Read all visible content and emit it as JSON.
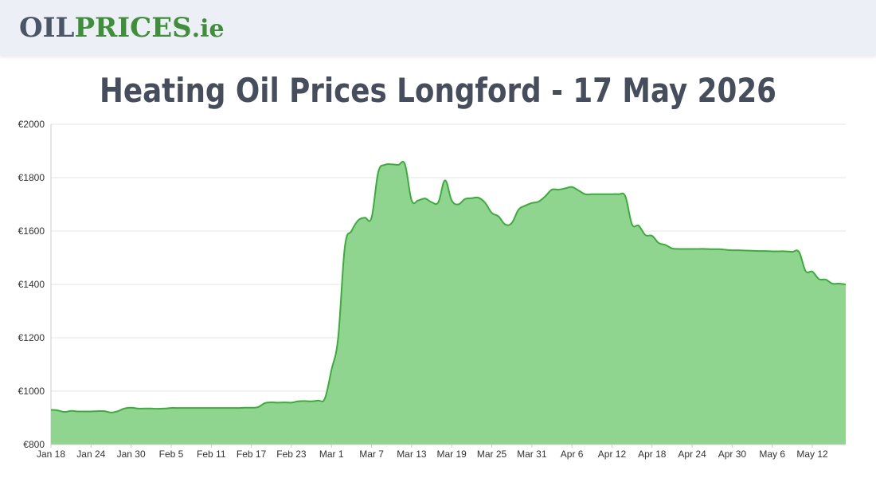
{
  "header": {
    "logo": {
      "oil": "OIL",
      "prices": "PRICES",
      "tld": ".ie",
      "colors": {
        "oil": "#4a5568",
        "prices": "#3f8f3a"
      }
    }
  },
  "page": {
    "title": "Heating Oil Prices Longford - 17 May 2026"
  },
  "chart_data": {
    "type": "area",
    "title": "Heating Oil Prices Longford - 17 May 2026",
    "xlabel": "",
    "ylabel": "",
    "ylim": [
      800,
      2000
    ],
    "yticks": [
      "€800",
      "€1000",
      "€1200",
      "€1400",
      "€1600",
      "€1800",
      "€2000"
    ],
    "ytick_values": [
      800,
      1000,
      1200,
      1400,
      1600,
      1800,
      2000
    ],
    "xticks": [
      "Jan 18",
      "Jan 24",
      "Jan 30",
      "Feb 5",
      "Feb 11",
      "Feb 17",
      "Feb 23",
      "Mar 1",
      "Mar 7",
      "Mar 13",
      "Mar 19",
      "Mar 25",
      "Mar 31",
      "Apr 6",
      "Apr 12",
      "Apr 18",
      "Apr 24",
      "Apr 30",
      "May 6",
      "May 12"
    ],
    "x_range": [
      "Jan 18",
      "May 17"
    ],
    "grid": true,
    "colors": {
      "fill": "#90d58f",
      "line": "#3aad3a",
      "grid": "#e6e6e6"
    },
    "series": [
      {
        "x": [
          "Jan 18",
          "Jan 19",
          "Jan 20",
          "Jan 21",
          "Jan 22",
          "Jan 23",
          "Jan 24",
          "Jan 25",
          "Jan 26",
          "Jan 27",
          "Jan 28",
          "Jan 29",
          "Jan 30",
          "Jan 31",
          "Feb 1",
          "Feb 2",
          "Feb 3",
          "Feb 4",
          "Feb 5",
          "Feb 6",
          "Feb 7",
          "Feb 8",
          "Feb 9",
          "Feb 10",
          "Feb 11",
          "Feb 12",
          "Feb 13",
          "Feb 14",
          "Feb 15",
          "Feb 16",
          "Feb 17",
          "Feb 18",
          "Feb 19",
          "Feb 20",
          "Feb 21",
          "Feb 22",
          "Feb 23",
          "Feb 24",
          "Feb 25",
          "Feb 26",
          "Feb 27",
          "Feb 28",
          "Mar 1",
          "Mar 2",
          "Mar 3",
          "Mar 4",
          "Mar 5",
          "Mar 6",
          "Mar 7",
          "Mar 8",
          "Mar 9",
          "Mar 10",
          "Mar 11",
          "Mar 12",
          "Mar 13",
          "Mar 14",
          "Mar 15",
          "Mar 16",
          "Mar 17",
          "Mar 18",
          "Mar 19",
          "Mar 20",
          "Mar 21",
          "Mar 22",
          "Mar 23",
          "Mar 24",
          "Mar 25",
          "Mar 26",
          "Mar 27",
          "Mar 28",
          "Mar 29",
          "Mar 30",
          "Mar 31",
          "Apr 1",
          "Apr 2",
          "Apr 3",
          "Apr 4",
          "Apr 5",
          "Apr 6",
          "Apr 7",
          "Apr 8",
          "Apr 9",
          "Apr 10",
          "Apr 11",
          "Apr 12",
          "Apr 13",
          "Apr 14",
          "Apr 15",
          "Apr 16",
          "Apr 17",
          "Apr 18",
          "Apr 19",
          "Apr 20",
          "Apr 21",
          "Apr 22",
          "Apr 23",
          "Apr 24",
          "Apr 25",
          "Apr 26",
          "Apr 27",
          "Apr 28",
          "Apr 29",
          "Apr 30",
          "May 1",
          "May 2",
          "May 3",
          "May 4",
          "May 5",
          "May 6",
          "May 7",
          "May 8",
          "May 9",
          "May 10",
          "May 11",
          "May 12",
          "May 13",
          "May 14",
          "May 15",
          "May 16",
          "May 17"
        ],
        "values": [
          930,
          928,
          922,
          926,
          924,
          924,
          924,
          925,
          925,
          920,
          925,
          935,
          938,
          935,
          935,
          935,
          934,
          935,
          937,
          937,
          937,
          937,
          937,
          937,
          937,
          937,
          937,
          937,
          937,
          938,
          938,
          940,
          955,
          958,
          957,
          958,
          957,
          962,
          963,
          962,
          965,
          972,
          1080,
          1200,
          1540,
          1600,
          1640,
          1650,
          1650,
          1820,
          1848,
          1850,
          1848,
          1850,
          1715,
          1715,
          1722,
          1708,
          1708,
          1790,
          1715,
          1700,
          1720,
          1723,
          1725,
          1706,
          1668,
          1655,
          1625,
          1630,
          1680,
          1695,
          1705,
          1710,
          1730,
          1755,
          1755,
          1760,
          1765,
          1752,
          1738,
          1738,
          1738,
          1738,
          1738,
          1738,
          1730,
          1625,
          1620,
          1585,
          1582,
          1555,
          1548,
          1535,
          1533,
          1533,
          1533,
          1533,
          1533,
          1532,
          1532,
          1530,
          1528,
          1528,
          1527,
          1526,
          1525,
          1525,
          1524,
          1524,
          1524,
          1522,
          1522,
          1450,
          1448,
          1420,
          1418,
          1403,
          1403,
          1400
        ]
      }
    ]
  }
}
